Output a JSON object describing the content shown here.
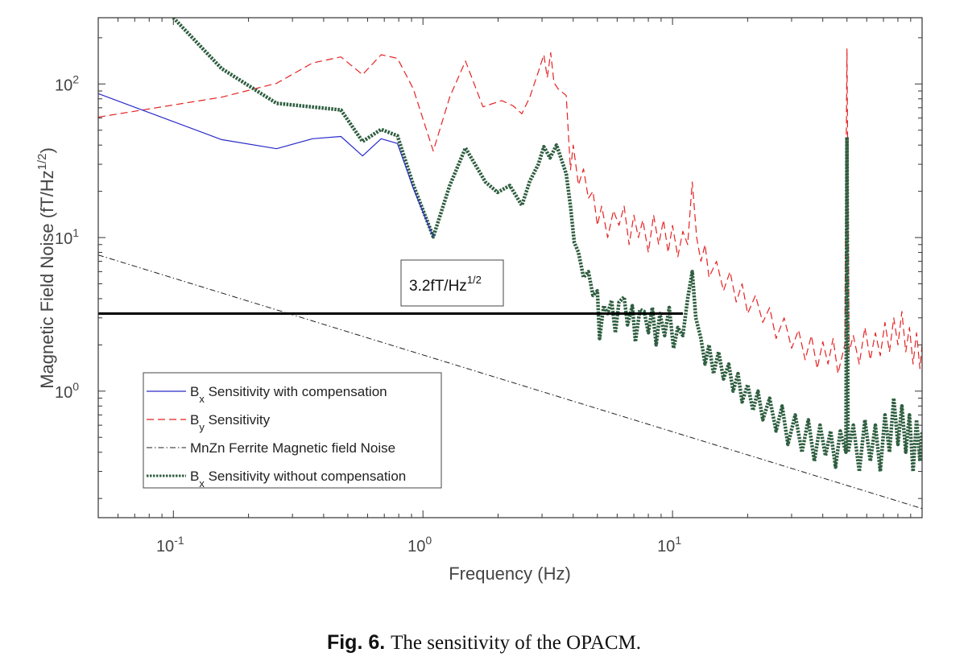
{
  "chart_data": {
    "type": "line",
    "xlabel": "Frequency (Hz)",
    "ylabel_main": "Magnetic Field Noise (fT/Hz",
    "ylabel_sup": "1/2",
    "ylabel_end": ")",
    "xscale": "log",
    "yscale": "log",
    "xlim": [
      0.05,
      100
    ],
    "ylim": [
      0.15,
      270
    ],
    "grid": false,
    "legend_position": "bottom-left",
    "x_ticks": [
      {
        "value": 0.1,
        "base": "10",
        "exp": "-1"
      },
      {
        "value": 1,
        "base": "10",
        "exp": "0"
      },
      {
        "value": 10,
        "base": "10",
        "exp": "1"
      }
    ],
    "y_ticks": [
      {
        "value": 1,
        "base": "10",
        "exp": "0"
      },
      {
        "value": 10,
        "base": "10",
        "exp": "1"
      },
      {
        "value": 100,
        "base": "10",
        "exp": "2"
      }
    ],
    "series": [
      {
        "name_main": "B",
        "name_sub": "x",
        "name_rest": " Sensitivity with compensation",
        "color": "#2a2ac8",
        "style": "solid",
        "points": [
          [
            0.05,
            86.5
          ],
          [
            0.156,
            43.4
          ],
          [
            0.259,
            37.9
          ],
          [
            0.361,
            44
          ],
          [
            0.469,
            45.5
          ],
          [
            0.573,
            34
          ],
          [
            0.68,
            44
          ],
          [
            0.79,
            41
          ],
          [
            0.915,
            21
          ],
          [
            1.0,
            14.7
          ],
          [
            1.1,
            10.1
          ]
        ]
      },
      {
        "name_main": "B",
        "name_sub": "y",
        "name_rest": " Sensitivity",
        "color": "#e52222",
        "style": "dashed",
        "points": [
          [
            0.05,
            60.8
          ],
          [
            0.156,
            82
          ],
          [
            0.259,
            101
          ],
          [
            0.361,
            137
          ],
          [
            0.469,
            150
          ],
          [
            0.573,
            115
          ],
          [
            0.68,
            155
          ],
          [
            0.79,
            147
          ],
          [
            0.915,
            93
          ],
          [
            1.1,
            36.6
          ],
          [
            1.28,
            82
          ],
          [
            1.48,
            141
          ],
          [
            1.74,
            71
          ],
          [
            2.07,
            78
          ],
          [
            2.3,
            72
          ],
          [
            2.49,
            64
          ],
          [
            2.68,
            82
          ],
          [
            2.9,
            120
          ],
          [
            3.05,
            155
          ],
          [
            3.15,
            110
          ],
          [
            3.25,
            160
          ],
          [
            3.35,
            102
          ],
          [
            3.48,
            93
          ],
          [
            3.75,
            84
          ],
          [
            3.9,
            27.6
          ],
          [
            4.0,
            40
          ],
          [
            4.2,
            22
          ],
          [
            4.4,
            28
          ],
          [
            4.6,
            18
          ],
          [
            4.8,
            20
          ],
          [
            5.0,
            12
          ],
          [
            5.2,
            16
          ],
          [
            5.5,
            10
          ],
          [
            5.8,
            15
          ],
          [
            6.1,
            12
          ],
          [
            6.4,
            16
          ],
          [
            6.7,
            9
          ],
          [
            7.0,
            14
          ],
          [
            7.3,
            10
          ],
          [
            7.6,
            13
          ],
          [
            8.0,
            8
          ],
          [
            8.4,
            14
          ],
          [
            8.8,
            9
          ],
          [
            9.2,
            13
          ],
          [
            9.6,
            8
          ],
          [
            10,
            12
          ],
          [
            10.5,
            7.5
          ],
          [
            11,
            11
          ],
          [
            11.5,
            9
          ],
          [
            12,
            23
          ],
          [
            12.5,
            10
          ],
          [
            13,
            7
          ],
          [
            13.5,
            9
          ],
          [
            14,
            5.5
          ],
          [
            15,
            7
          ],
          [
            16,
            4.5
          ],
          [
            17,
            6
          ],
          [
            18,
            3.8
          ],
          [
            19,
            5
          ],
          [
            20,
            3.2
          ],
          [
            21.5,
            4.2
          ],
          [
            23,
            2.8
          ],
          [
            24.5,
            3.5
          ],
          [
            26,
            2.2
          ],
          [
            28,
            3
          ],
          [
            30,
            1.9
          ],
          [
            32,
            2.5
          ],
          [
            34,
            1.6
          ],
          [
            36,
            2.3
          ],
          [
            38,
            1.4
          ],
          [
            40,
            2.1
          ],
          [
            42,
            1.5
          ],
          [
            44,
            2.2
          ],
          [
            46,
            1.3
          ],
          [
            49,
            2
          ],
          [
            50,
            170
          ],
          [
            51,
            1.8
          ],
          [
            53,
            2.3
          ],
          [
            56,
            1.5
          ],
          [
            59,
            2.6
          ],
          [
            62,
            1.6
          ],
          [
            65,
            2.4
          ],
          [
            68,
            1.7
          ],
          [
            71,
            2.8
          ],
          [
            74,
            1.8
          ],
          [
            77,
            3
          ],
          [
            80,
            2
          ],
          [
            83,
            3.3
          ],
          [
            86,
            1.8
          ],
          [
            89,
            2.6
          ],
          [
            92,
            1.5
          ],
          [
            95,
            2.4
          ],
          [
            98,
            1.4
          ],
          [
            100,
            2
          ]
        ]
      },
      {
        "name_main": "MnZn Ferrite Magnetic field Noise",
        "name_sub": "",
        "name_rest": "",
        "color": "#222222",
        "style": "dashdot",
        "points": [
          [
            0.05,
            7.7
          ],
          [
            100,
            0.172
          ]
        ]
      },
      {
        "name_main": "B",
        "name_sub": "x",
        "name_rest": " Sensitivity without compensation",
        "color": "#2f5e40",
        "style": "dotted",
        "points": [
          [
            0.1,
            270
          ],
          [
            0.156,
            126
          ],
          [
            0.259,
            74.8
          ],
          [
            0.469,
            67.8
          ],
          [
            0.573,
            42.2
          ],
          [
            0.68,
            50.6
          ],
          [
            0.79,
            46
          ],
          [
            0.915,
            22
          ],
          [
            1.1,
            10.1
          ],
          [
            1.28,
            21.8
          ],
          [
            1.48,
            38.3
          ],
          [
            1.78,
            23
          ],
          [
            1.99,
            19.7
          ],
          [
            2.23,
            21.8
          ],
          [
            2.49,
            16.2
          ],
          [
            2.68,
            23.3
          ],
          [
            2.9,
            30
          ],
          [
            3.05,
            39
          ],
          [
            3.23,
            33
          ],
          [
            3.43,
            40
          ],
          [
            3.75,
            26
          ],
          [
            3.9,
            16
          ],
          [
            4.04,
            9.3
          ],
          [
            4.2,
            8
          ],
          [
            4.4,
            5.5
          ],
          [
            4.6,
            6
          ],
          [
            4.8,
            4.2
          ],
          [
            5.0,
            4.5
          ],
          [
            5.1,
            2.2
          ],
          [
            5.3,
            3.6
          ],
          [
            5.5,
            3.2
          ],
          [
            5.7,
            3.9
          ],
          [
            5.9,
            2.4
          ],
          [
            6.1,
            3.8
          ],
          [
            6.4,
            4.1
          ],
          [
            6.6,
            2.7
          ],
          [
            6.9,
            3.6
          ],
          [
            7.1,
            2.1
          ],
          [
            7.4,
            3.4
          ],
          [
            7.7,
            3.3
          ],
          [
            8.0,
            2.4
          ],
          [
            8.3,
            3.5
          ],
          [
            8.6,
            2.0
          ],
          [
            8.9,
            3.2
          ],
          [
            9.3,
            2.3
          ],
          [
            9.7,
            3.5
          ],
          [
            10.1,
            1.9
          ],
          [
            10.5,
            2.6
          ],
          [
            11,
            2.3
          ],
          [
            11.5,
            4
          ],
          [
            12,
            6
          ],
          [
            12.4,
            3
          ],
          [
            13,
            2.2
          ],
          [
            13.5,
            1.5
          ],
          [
            14,
            2.0
          ],
          [
            14.6,
            1.3
          ],
          [
            15.3,
            1.8
          ],
          [
            16,
            1.2
          ],
          [
            16.8,
            1.5
          ],
          [
            17.5,
            1.0
          ],
          [
            18.3,
            1.3
          ],
          [
            19,
            0.85
          ],
          [
            20,
            1.1
          ],
          [
            21,
            0.75
          ],
          [
            22,
            1.0
          ],
          [
            23,
            0.65
          ],
          [
            24.5,
            0.9
          ],
          [
            26,
            0.55
          ],
          [
            27.5,
            0.8
          ],
          [
            29,
            0.45
          ],
          [
            31,
            0.7
          ],
          [
            33,
            0.4
          ],
          [
            35,
            0.65
          ],
          [
            37,
            0.35
          ],
          [
            39,
            0.6
          ],
          [
            41,
            0.38
          ],
          [
            43,
            0.55
          ],
          [
            45,
            0.32
          ],
          [
            47,
            0.55
          ],
          [
            49.5,
            0.4
          ],
          [
            50,
            45
          ],
          [
            50.5,
            0.4
          ],
          [
            53,
            0.6
          ],
          [
            56,
            0.3
          ],
          [
            59,
            0.65
          ],
          [
            62,
            0.35
          ],
          [
            65,
            0.6
          ],
          [
            68,
            0.3
          ],
          [
            71,
            0.7
          ],
          [
            74,
            0.4
          ],
          [
            77,
            0.9
          ],
          [
            80,
            0.45
          ],
          [
            83,
            0.8
          ],
          [
            86,
            0.4
          ],
          [
            89,
            0.7
          ],
          [
            92,
            0.3
          ],
          [
            95,
            0.65
          ],
          [
            98,
            0.35
          ],
          [
            100,
            0.55
          ]
        ]
      }
    ],
    "reference_line": {
      "value": 3.2,
      "x_range": [
        0.05,
        11
      ],
      "color": "#000000"
    },
    "annotation": {
      "text_main": "3.2fT/Hz",
      "text_sup": "1/2",
      "x": 1.3,
      "y": 4.6
    }
  },
  "caption": {
    "figure_label": "Fig. 6.",
    "text": "The sensitivity of the OPACM."
  }
}
